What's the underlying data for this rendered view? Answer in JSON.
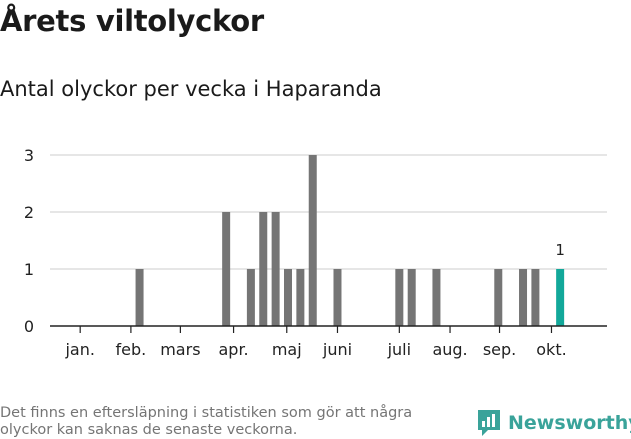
{
  "title": "Årets viltolyckor",
  "subtitle": "Antal olyckor per vecka i Haparanda",
  "footnote": "Det finns en eftersläpning i statistiken som gör att några olyckor kan saknas de senaste veckorna.",
  "brand": {
    "name": "Newsworthy",
    "icon": "newsworthy-logo-icon"
  },
  "colors": {
    "bar": "#757575",
    "highlight": "#12a89a",
    "grid": "#dddddd",
    "axis": "#222222"
  },
  "chart_data": {
    "type": "bar",
    "xlabel": "",
    "ylabel": "",
    "ylim": [
      0,
      3
    ],
    "yticks": [
      0,
      1,
      2,
      3
    ],
    "grid": true,
    "weeks": [
      1,
      2,
      3,
      4,
      5,
      6,
      7,
      8,
      9,
      10,
      11,
      12,
      13,
      14,
      15,
      16,
      17,
      18,
      19,
      20,
      21,
      22,
      23,
      24,
      25,
      26,
      27,
      28,
      29,
      30,
      31,
      32,
      33,
      34,
      35,
      36,
      37,
      38,
      39,
      40,
      41,
      42
    ],
    "values": [
      0,
      0,
      0,
      0,
      0,
      0,
      0,
      1,
      0,
      0,
      0,
      0,
      0,
      0,
      2,
      0,
      1,
      2,
      2,
      1,
      1,
      3,
      0,
      1,
      0,
      0,
      0,
      0,
      1,
      1,
      0,
      1,
      0,
      0,
      0,
      0,
      1,
      0,
      1,
      1,
      0,
      1
    ],
    "highlight_week": 42,
    "highlight_label": "1",
    "months": [
      {
        "label": "jan.",
        "week": 3.2
      },
      {
        "label": "feb.",
        "week": 7.3
      },
      {
        "label": "mars",
        "week": 11.3
      },
      {
        "label": "apr.",
        "week": 15.6
      },
      {
        "label": "maj",
        "week": 19.9
      },
      {
        "label": "juni",
        "week": 24.0
      },
      {
        "label": "juli",
        "week": 29.0
      },
      {
        "label": "aug.",
        "week": 33.1
      },
      {
        "label": "sep.",
        "week": 37.1
      },
      {
        "label": "okt.",
        "week": 41.3
      }
    ]
  }
}
